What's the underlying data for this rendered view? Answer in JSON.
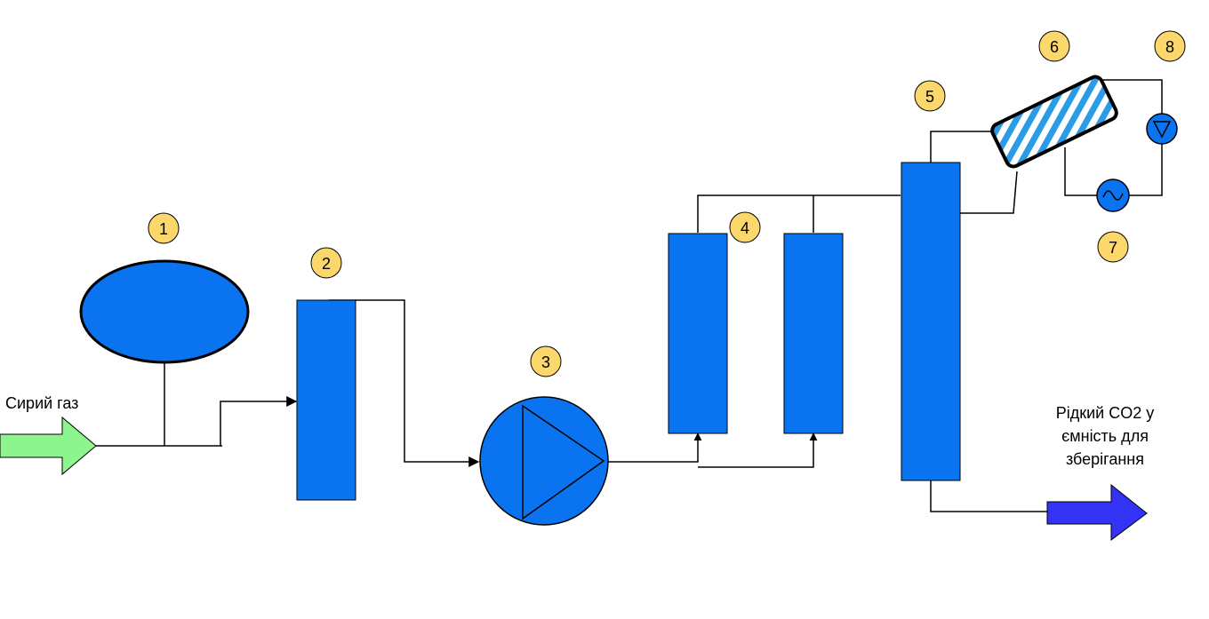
{
  "diagram": {
    "input_label": "Сирий газ",
    "output_label_lines": [
      "Рідкий CO2 у",
      "ємність для",
      "зберігання"
    ],
    "badges": [
      "1",
      "2",
      "3",
      "4",
      "5",
      "6",
      "7",
      "8"
    ],
    "colors": {
      "equipment": "#0a74f0",
      "badge": "#fcd86c",
      "inlet_arrow": "#8ef58e",
      "outlet_arrow": "#3333f5",
      "hatch": "#2b9be8"
    }
  }
}
